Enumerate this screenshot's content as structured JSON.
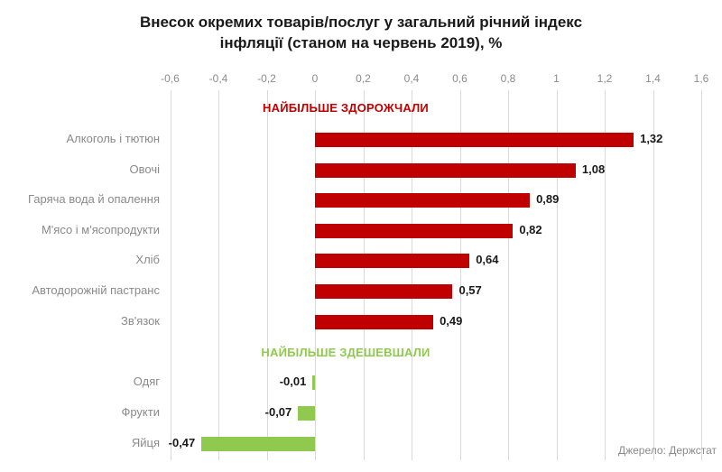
{
  "title": {
    "line1": "Внесок окремих товарів/послуг у загальний річний індекс",
    "line2": "інфляції (станом на червень 2019), %"
  },
  "source": "Джерело: Держстат",
  "colors": {
    "increase": "#c00000",
    "decrease": "#8fca4f",
    "grid": "#d9d9d9",
    "axis_text": "#8c8c8c",
    "category_text": "#8a8a8a",
    "value_text": "#1a1a1a",
    "title_text": "#1a1a1a",
    "source_text": "#8a8a8a"
  },
  "chart_data": {
    "type": "bar",
    "orientation": "horizontal",
    "title": "Внесок окремих товарів/послуг у загальний річний індекс інфляції (станом на червень 2019), %",
    "xlabel": "",
    "ylabel": "",
    "xlim": [
      -0.6,
      1.6
    ],
    "grid": true,
    "x_ticks": [
      {
        "value": -0.6,
        "label": "-0,6"
      },
      {
        "value": -0.4,
        "label": "-0,4"
      },
      {
        "value": -0.2,
        "label": "-0,2"
      },
      {
        "value": 0,
        "label": "0"
      },
      {
        "value": 0.2,
        "label": "0,2"
      },
      {
        "value": 0.4,
        "label": "0,4"
      },
      {
        "value": 0.6,
        "label": "0,6"
      },
      {
        "value": 0.8,
        "label": "0,8"
      },
      {
        "value": 1,
        "label": "1"
      },
      {
        "value": 1.2,
        "label": "1,2"
      },
      {
        "value": 1.4,
        "label": "1,4"
      },
      {
        "value": 1.6,
        "label": "1,6"
      }
    ],
    "sections": [
      {
        "name": "most-expensive",
        "header": "НАЙБІЛЬШЕ ЗДОРОЖЧАЛИ",
        "color": "#c00000",
        "items": [
          {
            "category": "Алкоголь і тютюн",
            "value": 1.32,
            "value_label": "1,32"
          },
          {
            "category": "Овочі",
            "value": 1.08,
            "value_label": "1,08"
          },
          {
            "category": "Гаряча вода й опалення",
            "value": 0.89,
            "value_label": "0,89"
          },
          {
            "category": "М'ясо і м'ясопродукти",
            "value": 0.82,
            "value_label": "0,82"
          },
          {
            "category": "Хліб",
            "value": 0.64,
            "value_label": "0,64"
          },
          {
            "category": "Автодорожній пастранс",
            "value": 0.57,
            "value_label": "0,57"
          },
          {
            "category": "Зв'язок",
            "value": 0.49,
            "value_label": "0,49"
          }
        ]
      },
      {
        "name": "most-cheapened",
        "header": "НАЙБІЛЬШЕ ЗДЕШЕВШАЛИ",
        "color": "#8fca4f",
        "items": [
          {
            "category": "Одяг",
            "value": -0.01,
            "value_label": "-0,01"
          },
          {
            "category": "Фрукти",
            "value": -0.07,
            "value_label": "-0,07"
          },
          {
            "category": "Яйця",
            "value": -0.47,
            "value_label": "-0,47"
          }
        ]
      }
    ]
  }
}
